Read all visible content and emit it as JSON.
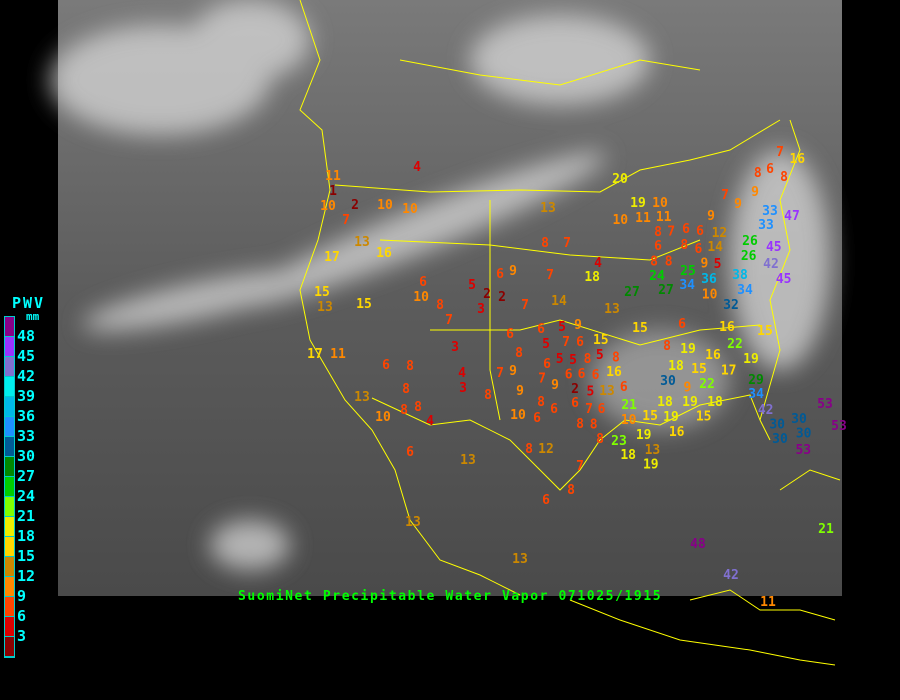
{
  "legend": {
    "title": "PWV",
    "unit": "mm",
    "labels": [
      "48",
      "45",
      "42",
      "39",
      "36",
      "33",
      "30",
      "27",
      "24",
      "21",
      "18",
      "15",
      "12",
      "9",
      "6",
      "3"
    ],
    "colors": [
      "#880088",
      "#9933ff",
      "#8070d0",
      "#00eeee",
      "#00b8e8",
      "#1e90ff",
      "#005a96",
      "#008800",
      "#00cc00",
      "#80ff00",
      "#eeee00",
      "#ffd700",
      "#cc8800",
      "#ff8800",
      "#ff4400",
      "#dd0000",
      "#8b0000"
    ]
  },
  "caption": "SuomiNet Precipitable Water Vapor 071025/1915",
  "colors": {
    "borders": "#ffff00",
    "caption": "#00ff00",
    "legend_text": "#00ffff",
    "background": "#000000"
  },
  "stations": [
    11,
    1,
    10,
    2,
    7,
    10,
    10,
    4,
    13,
    16,
    17,
    15,
    13,
    15,
    6,
    10,
    8,
    7,
    5,
    2,
    2,
    3,
    3,
    6,
    8,
    8,
    8,
    8,
    4,
    4,
    3,
    8,
    7,
    9,
    9,
    10,
    6,
    6,
    9,
    8,
    8,
    6,
    8,
    6,
    9,
    7,
    7,
    14,
    17,
    11,
    13,
    10,
    6,
    13,
    12,
    6,
    8,
    7,
    13,
    13,
    13,
    8,
    7,
    4,
    18,
    13,
    20,
    15,
    6,
    6,
    5,
    9,
    5,
    7,
    5,
    5,
    6,
    6,
    6,
    8,
    7,
    6,
    6,
    5,
    2,
    5,
    13,
    16,
    8,
    6,
    6,
    7,
    6,
    8,
    8,
    8,
    23,
    27,
    24,
    27,
    25,
    34,
    36,
    38,
    34,
    32,
    26,
    26,
    33,
    33,
    47,
    42,
    45,
    45,
    15,
    15,
    16,
    22,
    19,
    8,
    19,
    18,
    15,
    16,
    17,
    22,
    30,
    29,
    34,
    42,
    30,
    30,
    30,
    30,
    53,
    53,
    53,
    21,
    21,
    18,
    10,
    19,
    15,
    19,
    19,
    18,
    15,
    9,
    16,
    18,
    13,
    19,
    19,
    10,
    11,
    11,
    10,
    7,
    8,
    6,
    8,
    6,
    6,
    8,
    6,
    8,
    9,
    14,
    5,
    12,
    10,
    9,
    7,
    9,
    9,
    6,
    7,
    8,
    8,
    16,
    48,
    42,
    11
  ]
}
